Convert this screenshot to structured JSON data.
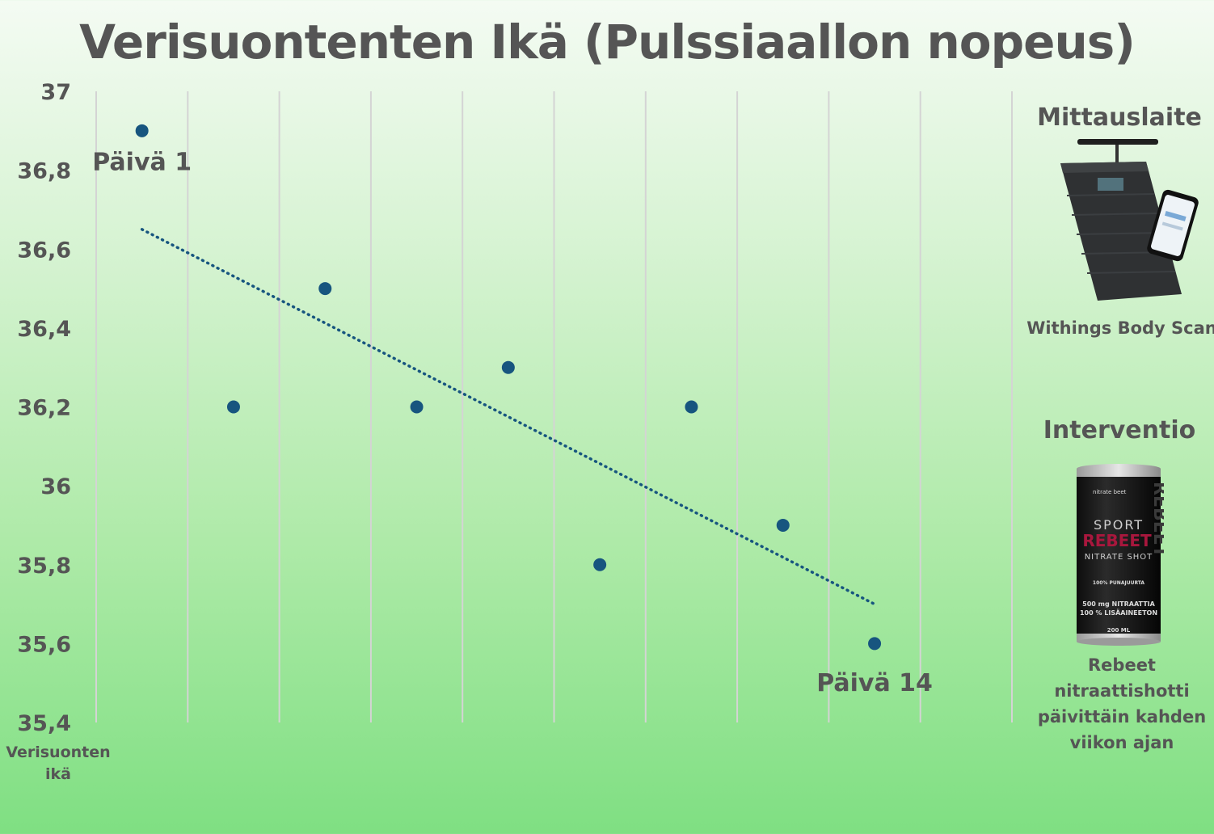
{
  "chart_data": {
    "type": "scatter",
    "title": "Verisuontenten Ikä (Pulssiaallon nopeus)",
    "ylabel": "Verisuonten ikä",
    "ylim": [
      35.4,
      37
    ],
    "yticks": [
      "37",
      "36,8",
      "36,6",
      "36,4",
      "36,2",
      "36",
      "35,8",
      "35,6",
      "35,4"
    ],
    "x": [
      1,
      3,
      5,
      7,
      9,
      11,
      13,
      15,
      17
    ],
    "xlim": [
      0,
      20
    ],
    "series": [
      {
        "values": [
          36.9,
          36.2,
          36.5,
          36.2,
          36.3,
          35.8,
          36.2,
          35.9,
          35.6
        ]
      }
    ],
    "trendline": {
      "style": "dotted",
      "x": [
        1,
        17
      ],
      "y": [
        36.65,
        35.7
      ]
    },
    "annotations": [
      {
        "text": "Päivä 1",
        "x": 1,
        "y": 36.8
      },
      {
        "text": "Päivä 14",
        "x": 17,
        "y": 35.48
      }
    ],
    "grid": "vertical",
    "colors": {
      "points": "#17557f",
      "trendline": "#17557f",
      "grid": "#d4d4d4"
    }
  },
  "sidebar": {
    "device_heading": "Mittauslaite",
    "device_image_icon": "smart-scale-with-phone-icon",
    "device_name": "Withings Body Scan",
    "intervention_heading": "Interventio",
    "intervention_image_icon": "drink-can-icon",
    "can": {
      "brand_small": "nitrate beet",
      "line1": "SPORT",
      "line2": "REBEET",
      "line3": "NITRATE SHOT",
      "side_text": "REBEET",
      "detail1": "100% PUNAJUURTA",
      "detail2": "500 mg NITRAATTIA",
      "detail3": "100 % LISÄAINEETON",
      "volume": "200 ML"
    },
    "intervention_text": "Rebeet nitraattishotti päivittäin kahden viikon ajan"
  }
}
